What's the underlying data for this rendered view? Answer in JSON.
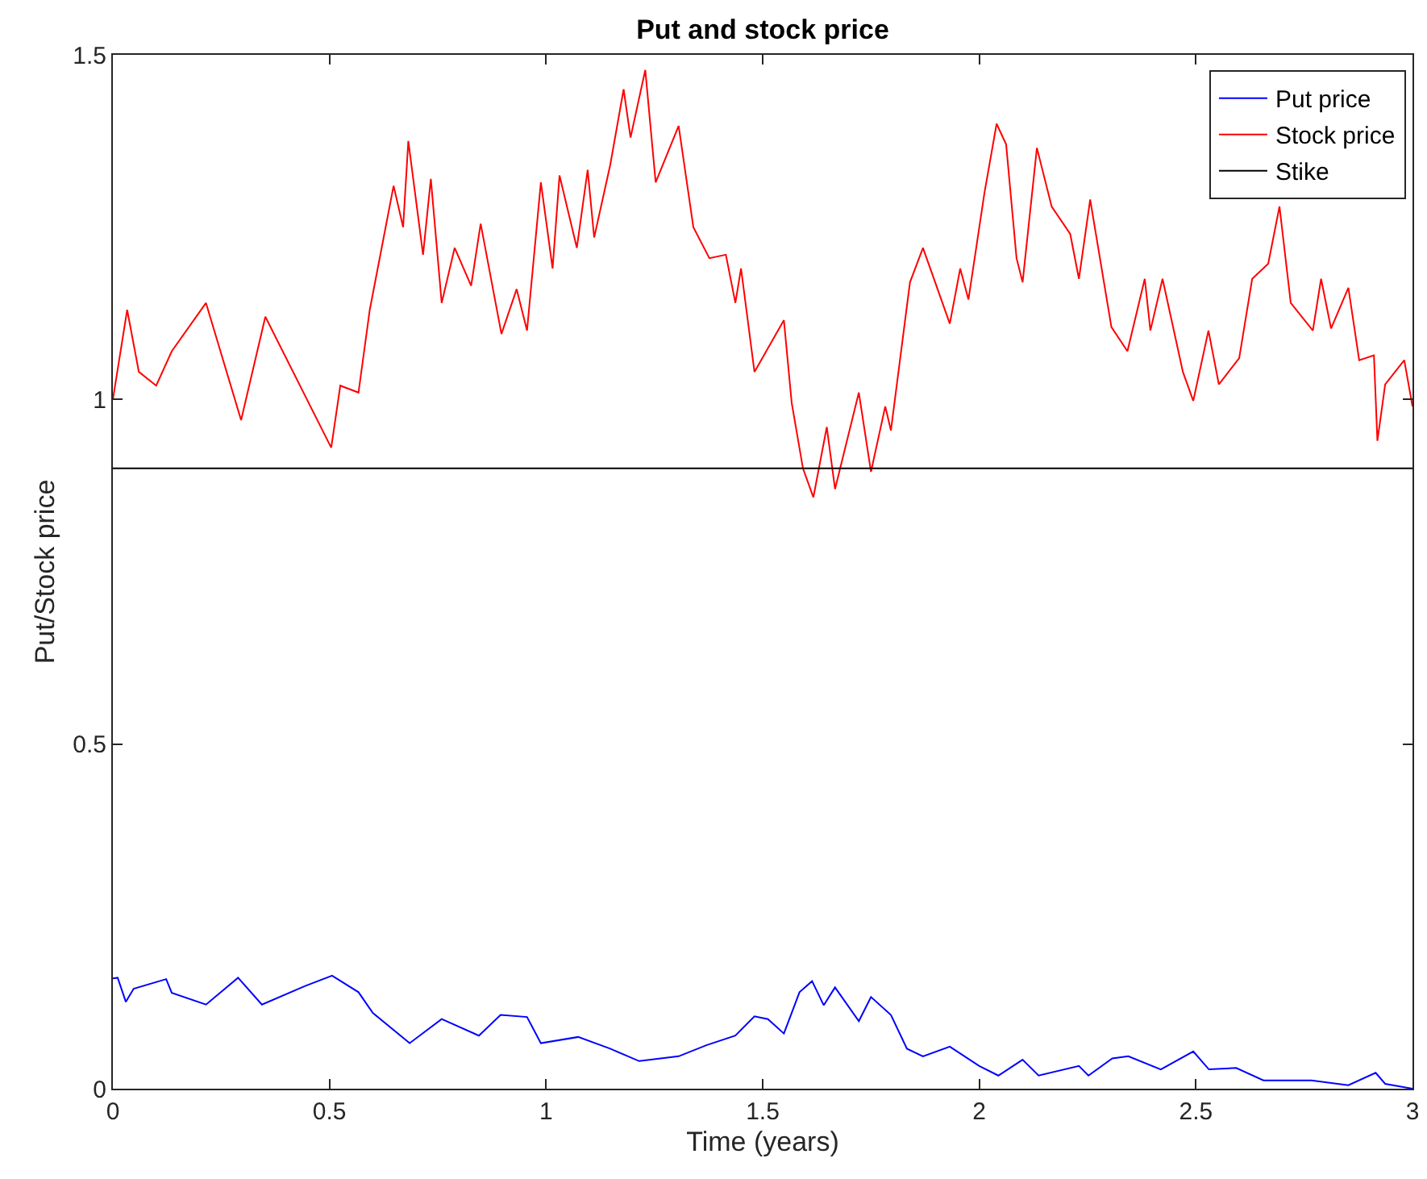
{
  "chart_data": {
    "type": "line",
    "title": "Put and stock price",
    "xlabel": "Time (years)",
    "ylabel": "Put/Stock price",
    "xlim": [
      0,
      3
    ],
    "xticks": [
      0,
      0.5,
      1,
      1.5,
      2,
      2.5,
      3
    ],
    "ylim": [
      0,
      1.5
    ],
    "yticks": [
      0,
      0.5,
      1,
      1.5
    ],
    "legend": "top right",
    "marker": "none",
    "line_style": "solid",
    "series": [
      {
        "name": "Put price",
        "color": "#0000ff",
        "x": [
          0,
          0.011,
          0.03,
          0.048,
          0.123,
          0.136,
          0.215,
          0.289,
          0.344,
          0.444,
          0.506,
          0.567,
          0.6,
          0.685,
          0.759,
          0.845,
          0.895,
          0.956,
          0.988,
          1.074,
          1.148,
          1.215,
          1.306,
          1.37,
          1.437,
          1.481,
          1.512,
          1.549,
          1.585,
          1.614,
          1.641,
          1.667,
          1.722,
          1.75,
          1.796,
          1.833,
          1.87,
          1.932,
          2.0,
          2.044,
          2.1,
          2.137,
          2.23,
          2.252,
          2.307,
          2.344,
          2.419,
          2.494,
          2.53,
          2.593,
          2.656,
          2.767,
          2.852,
          2.915,
          2.937,
          3.0
        ],
        "values": [
          0.16,
          0.161,
          0.126,
          0.145,
          0.159,
          0.139,
          0.122,
          0.161,
          0.122,
          0.149,
          0.164,
          0.14,
          0.11,
          0.066,
          0.101,
          0.077,
          0.107,
          0.104,
          0.066,
          0.075,
          0.058,
          0.04,
          0.047,
          0.063,
          0.077,
          0.105,
          0.101,
          0.08,
          0.14,
          0.156,
          0.121,
          0.147,
          0.098,
          0.133,
          0.107,
          0.058,
          0.047,
          0.061,
          0.033,
          0.019,
          0.042,
          0.019,
          0.033,
          0.019,
          0.044,
          0.047,
          0.028,
          0.054,
          0.028,
          0.03,
          0.012,
          0.012,
          0.005,
          0.023,
          0.007,
          0.0
        ]
      },
      {
        "name": "Stock price",
        "color": "#ff0000",
        "x": [
          0,
          0.033,
          0.06,
          0.1,
          0.136,
          0.215,
          0.296,
          0.352,
          0.456,
          0.504,
          0.525,
          0.567,
          0.593,
          0.648,
          0.67,
          0.682,
          0.716,
          0.734,
          0.759,
          0.789,
          0.827,
          0.849,
          0.897,
          0.932,
          0.956,
          0.988,
          1.015,
          1.031,
          1.071,
          1.096,
          1.111,
          1.148,
          1.179,
          1.195,
          1.229,
          1.253,
          1.306,
          1.34,
          1.377,
          1.415,
          1.437,
          1.45,
          1.481,
          1.549,
          1.567,
          1.593,
          1.617,
          1.648,
          1.667,
          1.722,
          1.75,
          1.783,
          1.796,
          1.84,
          1.87,
          1.932,
          1.956,
          1.975,
          2.012,
          2.04,
          2.062,
          2.086,
          2.1,
          2.133,
          2.167,
          2.21,
          2.23,
          2.256,
          2.305,
          2.342,
          2.382,
          2.395,
          2.423,
          2.47,
          2.494,
          2.529,
          2.553,
          2.6,
          2.63,
          2.667,
          2.693,
          2.719,
          2.77,
          2.789,
          2.812,
          2.852,
          2.877,
          2.911,
          2.919,
          2.937,
          2.981,
          3.0
        ],
        "values": [
          1.0,
          1.13,
          1.04,
          1.02,
          1.07,
          1.14,
          0.97,
          1.12,
          0.99,
          0.93,
          1.02,
          1.01,
          1.13,
          1.31,
          1.25,
          1.375,
          1.21,
          1.32,
          1.14,
          1.22,
          1.165,
          1.255,
          1.095,
          1.16,
          1.1,
          1.315,
          1.19,
          1.325,
          1.22,
          1.333,
          1.235,
          1.34,
          1.45,
          1.38,
          1.478,
          1.315,
          1.397,
          1.25,
          1.205,
          1.21,
          1.14,
          1.19,
          1.04,
          1.115,
          0.995,
          0.9,
          0.858,
          0.96,
          0.87,
          1.01,
          0.895,
          0.99,
          0.955,
          1.17,
          1.22,
          1.11,
          1.19,
          1.145,
          1.3,
          1.4,
          1.37,
          1.205,
          1.17,
          1.365,
          1.28,
          1.24,
          1.175,
          1.29,
          1.105,
          1.07,
          1.175,
          1.1,
          1.175,
          1.04,
          0.998,
          1.1,
          1.022,
          1.06,
          1.175,
          1.197,
          1.28,
          1.14,
          1.1,
          1.175,
          1.103,
          1.162,
          1.057,
          1.064,
          0.94,
          1.022,
          1.057,
          0.99
        ]
      },
      {
        "name": "Stike",
        "color": "#000000",
        "x": [
          0,
          3
        ],
        "values": [
          0.9,
          0.9
        ]
      }
    ]
  }
}
